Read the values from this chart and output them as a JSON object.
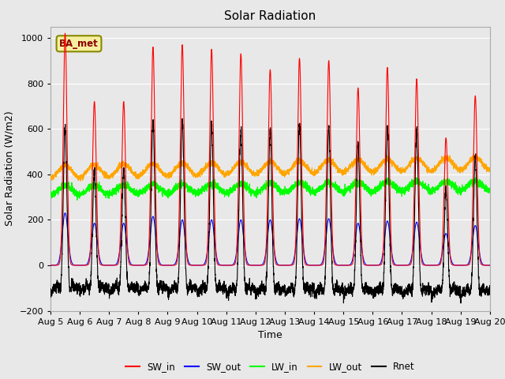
{
  "title": "Solar Radiation",
  "xlabel": "Time",
  "ylabel": "Solar Radiation (W/m2)",
  "ylim": [
    -200,
    1050
  ],
  "n_days": 15,
  "points_per_day": 288,
  "annotation_text": "BA_met",
  "legend_labels": [
    "SW_in",
    "SW_out",
    "LW_in",
    "LW_out",
    "Rnet"
  ],
  "legend_colors": [
    "red",
    "blue",
    "green",
    "orange",
    "black"
  ],
  "fig_bg_color": "#e8e8e8",
  "axes_bg_color": "#e8e8e8",
  "grid_color": "white",
  "sw_in_peaks": [
    1020,
    720,
    720,
    960,
    970,
    950,
    930,
    860,
    910,
    900,
    780,
    870,
    820,
    560,
    745
  ],
  "sw_out_peaks": [
    230,
    185,
    185,
    215,
    200,
    200,
    200,
    200,
    205,
    205,
    185,
    195,
    190,
    140,
    175
  ],
  "lw_in_base": 310,
  "lw_in_amp": 40,
  "lw_out_base": 385,
  "lw_out_amp": 55,
  "rnet_night": -80,
  "tick_labels": [
    "Aug 5",
    "Aug 6",
    "Aug 7",
    "Aug 8",
    "Aug 9",
    "Aug 10",
    "Aug 11",
    "Aug 12",
    "Aug 13",
    "Aug 14",
    "Aug 15",
    "Aug 16",
    "Aug 17",
    "Aug 18",
    "Aug 19",
    "Aug 20"
  ]
}
